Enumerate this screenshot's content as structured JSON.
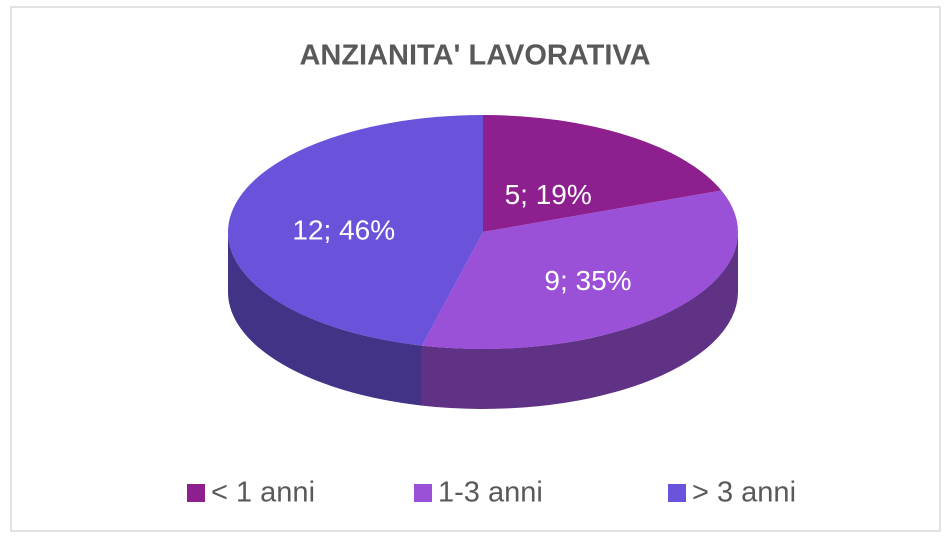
{
  "chart_data": {
    "type": "pie3d",
    "title": "ANZIANITA' LAVORATIVA",
    "categories": [
      "< 1 anni",
      "1-3 anni",
      "> 3 anni"
    ],
    "values": [
      5,
      9,
      12
    ],
    "value_labels": [
      "5; 19%",
      "9; 35%",
      "12; 46%"
    ],
    "colors": [
      "#8e1f8e",
      "#9b50d8",
      "#6a52da"
    ],
    "legend": "bottom"
  }
}
